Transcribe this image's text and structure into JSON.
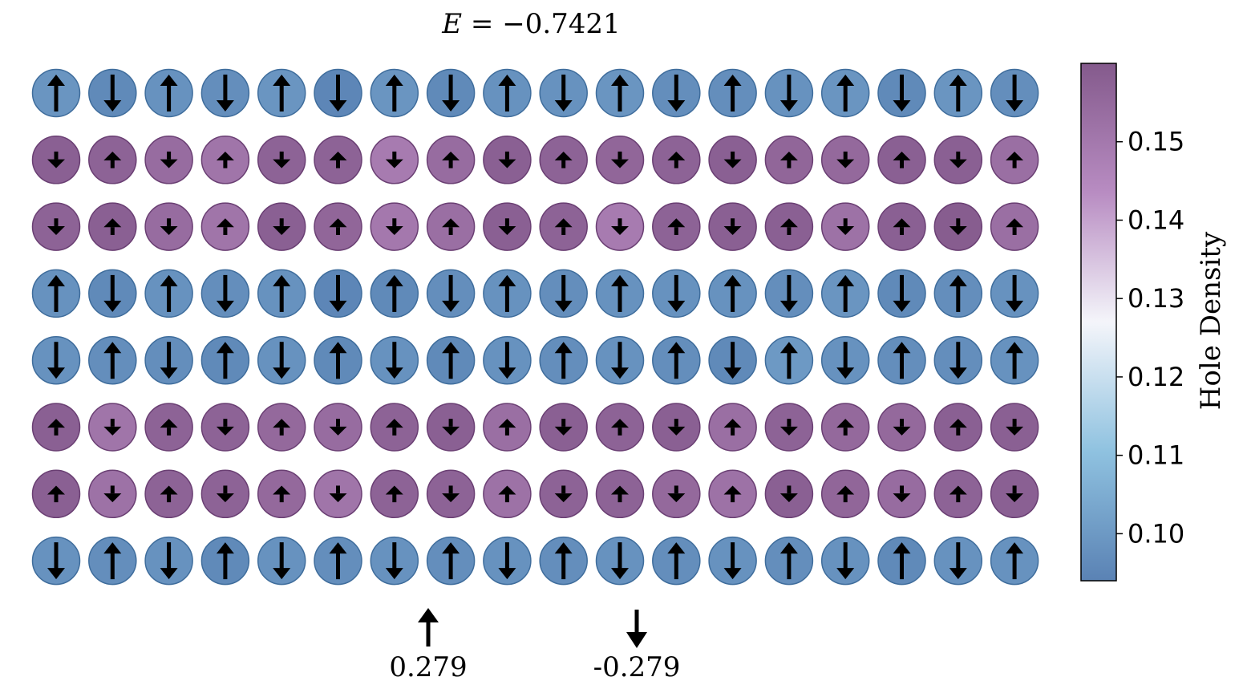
{
  "chart_data": {
    "type": "heatmap",
    "title_prefix": "E = ",
    "title_value": "−0.7421",
    "colorbar": {
      "label": "Hole Density",
      "range": [
        0.094,
        0.16
      ],
      "ticks": [
        0.1,
        0.11,
        0.12,
        0.13,
        0.14,
        0.15
      ],
      "tick_labels": [
        "0.10",
        "0.11",
        "0.12",
        "0.13",
        "0.14",
        "0.15"
      ],
      "colormap_stops": [
        "#5a82b4",
        "#8fc2e0",
        "#f4f5fa",
        "#b88cc2",
        "#845a8c"
      ]
    },
    "legend": {
      "up_value": "0.279",
      "down_value": "-0.279"
    },
    "rows": 8,
    "cols": 18,
    "spin_magnitude_rows": [
      1,
      0.45,
      0.45,
      1,
      1,
      0.45,
      0.45,
      1
    ],
    "spin_sign": [
      [
        1,
        -1,
        1,
        -1,
        1,
        -1,
        1,
        -1,
        1,
        -1,
        1,
        -1,
        1,
        -1,
        1,
        -1,
        1,
        -1
      ],
      [
        -1,
        1,
        -1,
        1,
        -1,
        1,
        -1,
        1,
        -1,
        1,
        -1,
        1,
        -1,
        1,
        -1,
        1,
        -1,
        1
      ],
      [
        -1,
        1,
        -1,
        1,
        -1,
        1,
        -1,
        1,
        -1,
        1,
        -1,
        1,
        -1,
        1,
        -1,
        1,
        -1,
        1
      ],
      [
        1,
        -1,
        1,
        -1,
        1,
        -1,
        1,
        -1,
        1,
        -1,
        1,
        -1,
        1,
        -1,
        1,
        -1,
        1,
        -1
      ],
      [
        -1,
        1,
        -1,
        1,
        -1,
        1,
        -1,
        1,
        -1,
        1,
        -1,
        1,
        -1,
        1,
        -1,
        1,
        -1,
        1
      ],
      [
        1,
        -1,
        1,
        -1,
        1,
        -1,
        1,
        -1,
        1,
        -1,
        1,
        -1,
        1,
        -1,
        1,
        -1,
        1,
        -1
      ],
      [
        1,
        -1,
        1,
        -1,
        1,
        -1,
        1,
        -1,
        1,
        -1,
        1,
        -1,
        1,
        -1,
        1,
        -1,
        1,
        -1
      ],
      [
        -1,
        1,
        -1,
        1,
        -1,
        1,
        -1,
        1,
        -1,
        1,
        -1,
        1,
        -1,
        1,
        -1,
        1,
        -1,
        1
      ]
    ],
    "hole_density": [
      [
        0.099,
        0.096,
        0.098,
        0.097,
        0.099,
        0.095,
        0.099,
        0.096,
        0.098,
        0.098,
        0.099,
        0.097,
        0.097,
        0.098,
        0.099,
        0.096,
        0.099,
        0.097
      ],
      [
        0.158,
        0.157,
        0.154,
        0.151,
        0.157,
        0.157,
        0.149,
        0.154,
        0.158,
        0.157,
        0.156,
        0.157,
        0.158,
        0.156,
        0.155,
        0.158,
        0.158,
        0.153
      ],
      [
        0.157,
        0.158,
        0.154,
        0.151,
        0.158,
        0.156,
        0.15,
        0.153,
        0.158,
        0.157,
        0.149,
        0.157,
        0.158,
        0.158,
        0.152,
        0.158,
        0.159,
        0.153
      ],
      [
        0.098,
        0.096,
        0.098,
        0.097,
        0.098,
        0.095,
        0.096,
        0.097,
        0.098,
        0.097,
        0.098,
        0.098,
        0.098,
        0.097,
        0.099,
        0.096,
        0.097,
        0.098
      ],
      [
        0.098,
        0.097,
        0.097,
        0.096,
        0.098,
        0.096,
        0.098,
        0.096,
        0.098,
        0.097,
        0.098,
        0.097,
        0.096,
        0.1,
        0.098,
        0.097,
        0.097,
        0.098
      ],
      [
        0.158,
        0.151,
        0.157,
        0.157,
        0.155,
        0.154,
        0.157,
        0.158,
        0.153,
        0.158,
        0.157,
        0.158,
        0.153,
        0.157,
        0.155,
        0.155,
        0.158,
        0.158
      ],
      [
        0.158,
        0.152,
        0.157,
        0.157,
        0.155,
        0.151,
        0.157,
        0.157,
        0.152,
        0.157,
        0.157,
        0.155,
        0.152,
        0.158,
        0.156,
        0.154,
        0.157,
        0.158
      ],
      [
        0.098,
        0.097,
        0.098,
        0.096,
        0.098,
        0.097,
        0.098,
        0.097,
        0.098,
        0.097,
        0.098,
        0.097,
        0.098,
        0.097,
        0.098,
        0.096,
        0.098,
        0.098
      ]
    ]
  }
}
